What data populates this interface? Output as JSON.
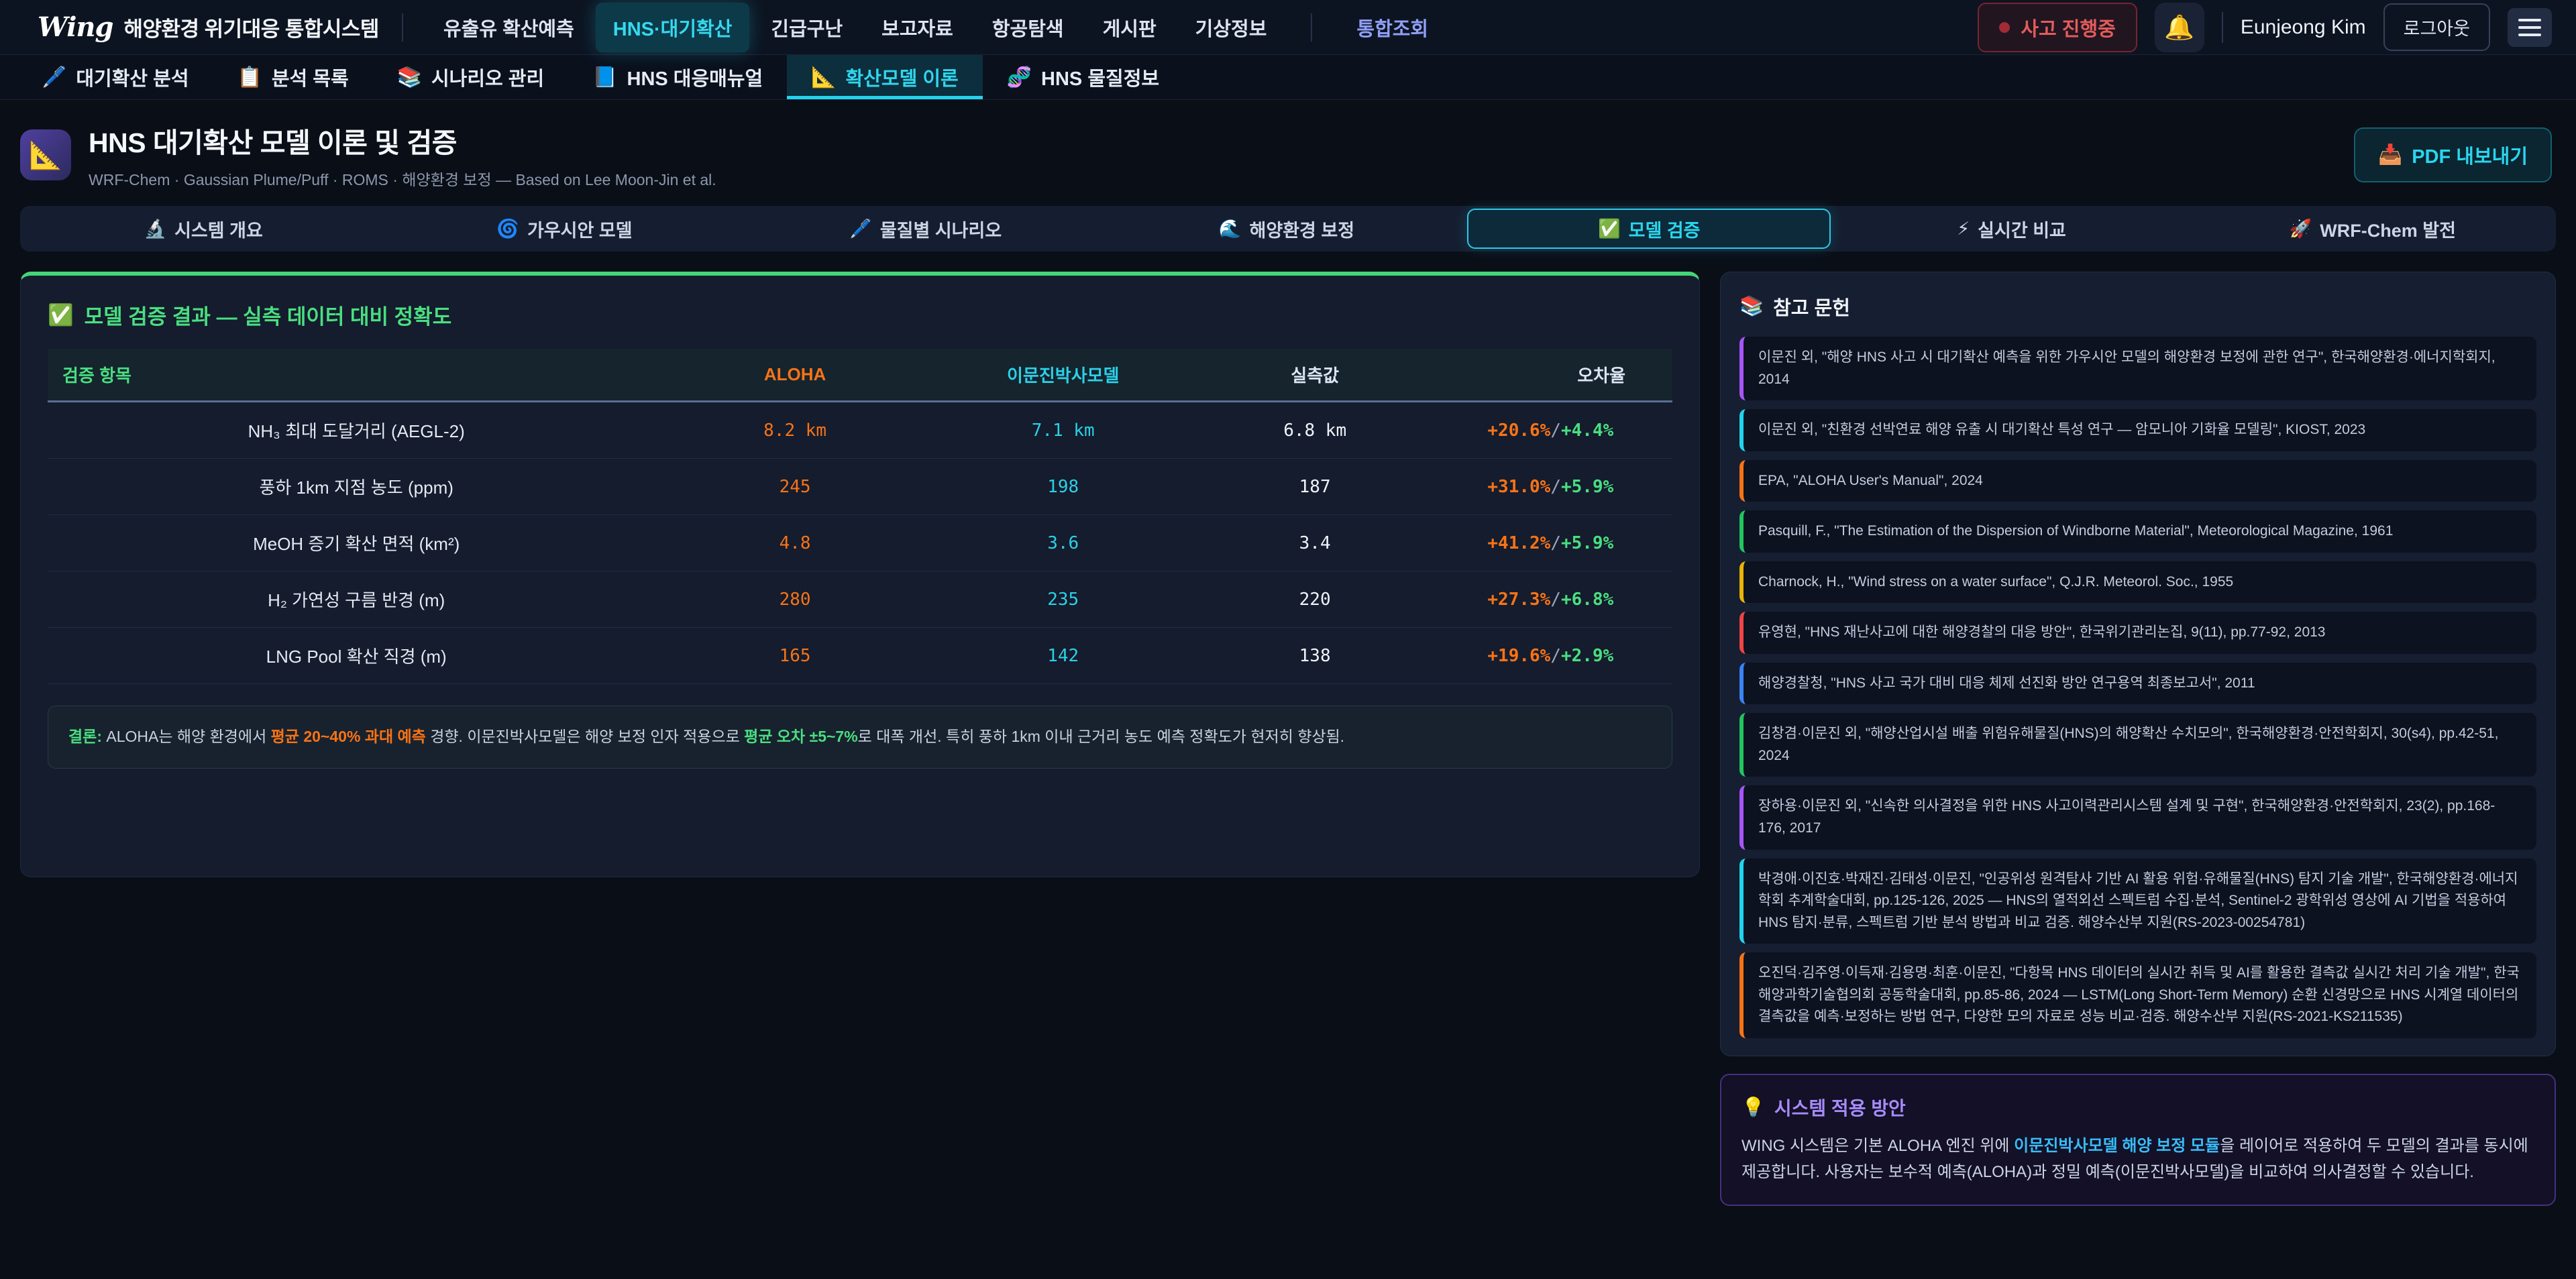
{
  "colors": {
    "accent_cyan": "#22d3ee",
    "accent_green": "#4ade80",
    "accent_orange": "#f97316",
    "accent_purple": "#a78bfa",
    "alert_red": "#ef4444"
  },
  "topnav": {
    "logo_wing": "Wing",
    "logo_title": "해양환경 위기대응 통합시스템",
    "items": [
      {
        "label": "유출유 확산예측"
      },
      {
        "label": "HNS·대기확산",
        "active": true
      },
      {
        "label": "긴급구난"
      },
      {
        "label": "보고자료"
      },
      {
        "label": "항공탐색"
      },
      {
        "label": "게시판"
      },
      {
        "label": "기상정보"
      },
      {
        "label": "통합조회",
        "highlight": true,
        "divider_before": true
      }
    ],
    "status_badge": "사고 진행중",
    "bell_icon": "🔔",
    "user_name": "Eunjeong Kim",
    "logout_label": "로그아웃"
  },
  "subnav": {
    "items": [
      {
        "icon": "🖊️",
        "label": "대기확산 분석"
      },
      {
        "icon": "📋",
        "label": "분석 목록"
      },
      {
        "icon": "📚",
        "label": "시나리오 관리"
      },
      {
        "icon": "📘",
        "label": "HNS 대응매뉴얼"
      },
      {
        "icon": "📐",
        "label": "확산모델 이론",
        "active": true
      },
      {
        "icon": "🧬",
        "label": "HNS 물질정보"
      }
    ]
  },
  "header": {
    "icon": "📐",
    "title": "HNS 대기확산 모델 이론 및 검증",
    "subtitle": "WRF-Chem · Gaussian Plume/Puff · ROMS · 해양환경 보정 — Based on Lee Moon-Jin et al.",
    "export_icon": "📥",
    "export_label": "PDF 내보내기"
  },
  "tabs": [
    {
      "icon": "🔬",
      "label": "시스템 개요"
    },
    {
      "icon": "🌀",
      "label": "가우시안 모델"
    },
    {
      "icon": "🖊️",
      "label": "물질별 시나리오"
    },
    {
      "icon": "🌊",
      "label": "해양환경 보정"
    },
    {
      "icon": "✅",
      "label": "모델 검증",
      "active": true
    },
    {
      "icon": "⚡",
      "label": "실시간 비교"
    },
    {
      "icon": "🚀",
      "label": "WRF-Chem 발전"
    }
  ],
  "validation": {
    "icon": "✅",
    "title": "모델 검증 결과 — 실측 데이터 대비 정확도",
    "table": {
      "headers": [
        "검증 항목",
        "ALOHA",
        "이문진박사모델",
        "실측값",
        "오차율"
      ],
      "err_separator": "/",
      "rows": [
        {
          "item": "NH₃ 최대 도달거리 (AEGL-2)",
          "aloha": "8.2 km",
          "model": "7.1 km",
          "measured": "6.8 km",
          "err_aloha": "+20.6%",
          "err_model": "+4.4%"
        },
        {
          "item": "풍하 1km 지점 농도 (ppm)",
          "aloha": "245",
          "model": "198",
          "measured": "187",
          "err_aloha": "+31.0%",
          "err_model": "+5.9%"
        },
        {
          "item": "MeOH 증기 확산 면적 (km²)",
          "aloha": "4.8",
          "model": "3.6",
          "measured": "3.4",
          "err_aloha": "+41.2%",
          "err_model": "+5.9%"
        },
        {
          "item": "H₂ 가연성 구름 반경 (m)",
          "aloha": "280",
          "model": "235",
          "measured": "220",
          "err_aloha": "+27.3%",
          "err_model": "+6.8%"
        },
        {
          "item": "LNG Pool 확산 직경 (m)",
          "aloha": "165",
          "model": "142",
          "measured": "138",
          "err_aloha": "+19.6%",
          "err_model": "+2.9%"
        }
      ]
    },
    "note_parts": [
      {
        "text": "결론:",
        "style": "green-bold"
      },
      {
        "text": " ALOHA는 해양 환경에서 ",
        "style": "plain"
      },
      {
        "text": "평균 20~40% 과대 예측",
        "style": "orange-bold"
      },
      {
        "text": " 경향. 이문진박사모델은 해양 보정 인자 적용으로 ",
        "style": "plain"
      },
      {
        "text": "평균 오차 ±5~7%",
        "style": "green-bold"
      },
      {
        "text": "로 대폭 개선. 특히 풍하 1km 이내 근거리 농도 예측 정확도가 현저히 향상됨.",
        "style": "plain"
      }
    ]
  },
  "references": {
    "icon": "📚",
    "title": "참고 문헌",
    "items": [
      {
        "color": "#a855f7",
        "text": "이문진 외, \"해양 HNS 사고 시 대기확산 예측을 위한 가우시안 모델의 해양환경 보정에 관한 연구\", 한국해양환경·에너지학회지, 2014"
      },
      {
        "color": "#22d3ee",
        "text": "이문진 외, \"친환경 선박연료 해양 유출 시 대기확산 특성 연구 — 암모니아 기화율 모델링\", KIOST, 2023"
      },
      {
        "color": "#f97316",
        "text": "EPA, \"ALOHA User's Manual\", 2024"
      },
      {
        "color": "#22c55e",
        "text": "Pasquill, F., \"The Estimation of the Dispersion of Windborne Material\", Meteorological Magazine, 1961"
      },
      {
        "color": "#eab308",
        "text": "Charnock, H., \"Wind stress on a water surface\", Q.J.R. Meteorol. Soc., 1955"
      },
      {
        "color": "#ef4444",
        "text": "유영현, \"HNS 재난사고에 대한 해양경찰의 대응 방안\", 한국위기관리논집, 9(11), pp.77-92, 2013"
      },
      {
        "color": "#3b82f6",
        "text": "해양경찰청, \"HNS 사고 국가 대비 대응 체제 선진화 방안 연구용역 최종보고서\", 2011"
      },
      {
        "color": "#22c55e",
        "text": "김창겸·이문진 외, \"해양산업시설 배출 위험유해물질(HNS)의 해양확산 수치모의\", 한국해양환경·안전학회지, 30(s4), pp.42-51, 2024"
      },
      {
        "color": "#a855f7",
        "text": "장하용·이문진 외, \"신속한 의사결정을 위한 HNS 사고이력관리시스템 설계 및 구현\", 한국해양환경·안전학회지, 23(2), pp.168-176, 2017"
      },
      {
        "color": "#22d3ee",
        "text": "박경애·이진호·박재진·김태성·이문진, \"인공위성 원격탐사 기반 AI 활용 위험·유해물질(HNS) 탐지 기술 개발\", 한국해양환경·에너지학회 추계학술대회, pp.125-126, 2025 — HNS의 열적외선 스펙트럼 수집·분석, Sentinel-2 광학위성 영상에 AI 기법을 적용하여 HNS 탐지·분류, 스펙트럼 기반 분석 방법과 비교 검증. 해양수산부 지원(RS-2023-00254781)"
      },
      {
        "color": "#f97316",
        "text": "오진덕·김주영·이득재·김용명·최훈·이문진, \"다항목 HNS 데이터의 실시간 취득 및 AI를 활용한 결측값 실시간 처리 기술 개발\", 한국해양과학기술협의회 공동학술대회, pp.85-86, 2024 — LSTM(Long Short-Term Memory) 순환 신경망으로 HNS 시계열 데이터의 결측값을 예측·보정하는 방법 연구, 다양한 모의 자료로 성능 비교·검증. 해양수산부 지원(RS-2021-KS211535)"
      }
    ]
  },
  "application": {
    "icon": "💡",
    "title": "시스템 적용 방안",
    "body_parts": [
      {
        "text": "WING 시스템은 기본 ALOHA 엔진 위에 ",
        "style": "plain"
      },
      {
        "text": "이문진박사모델 해양 보정 모듈",
        "style": "blue-bold"
      },
      {
        "text": "을 레이어로 적용하여 두 모델의 결과를 동시에 제공합니다. 사용자는 보수적 예측(ALOHA)과 정밀 예측(이문진박사모델)을 비교하여 의사결정할 수 있습니다.",
        "style": "plain"
      }
    ]
  }
}
